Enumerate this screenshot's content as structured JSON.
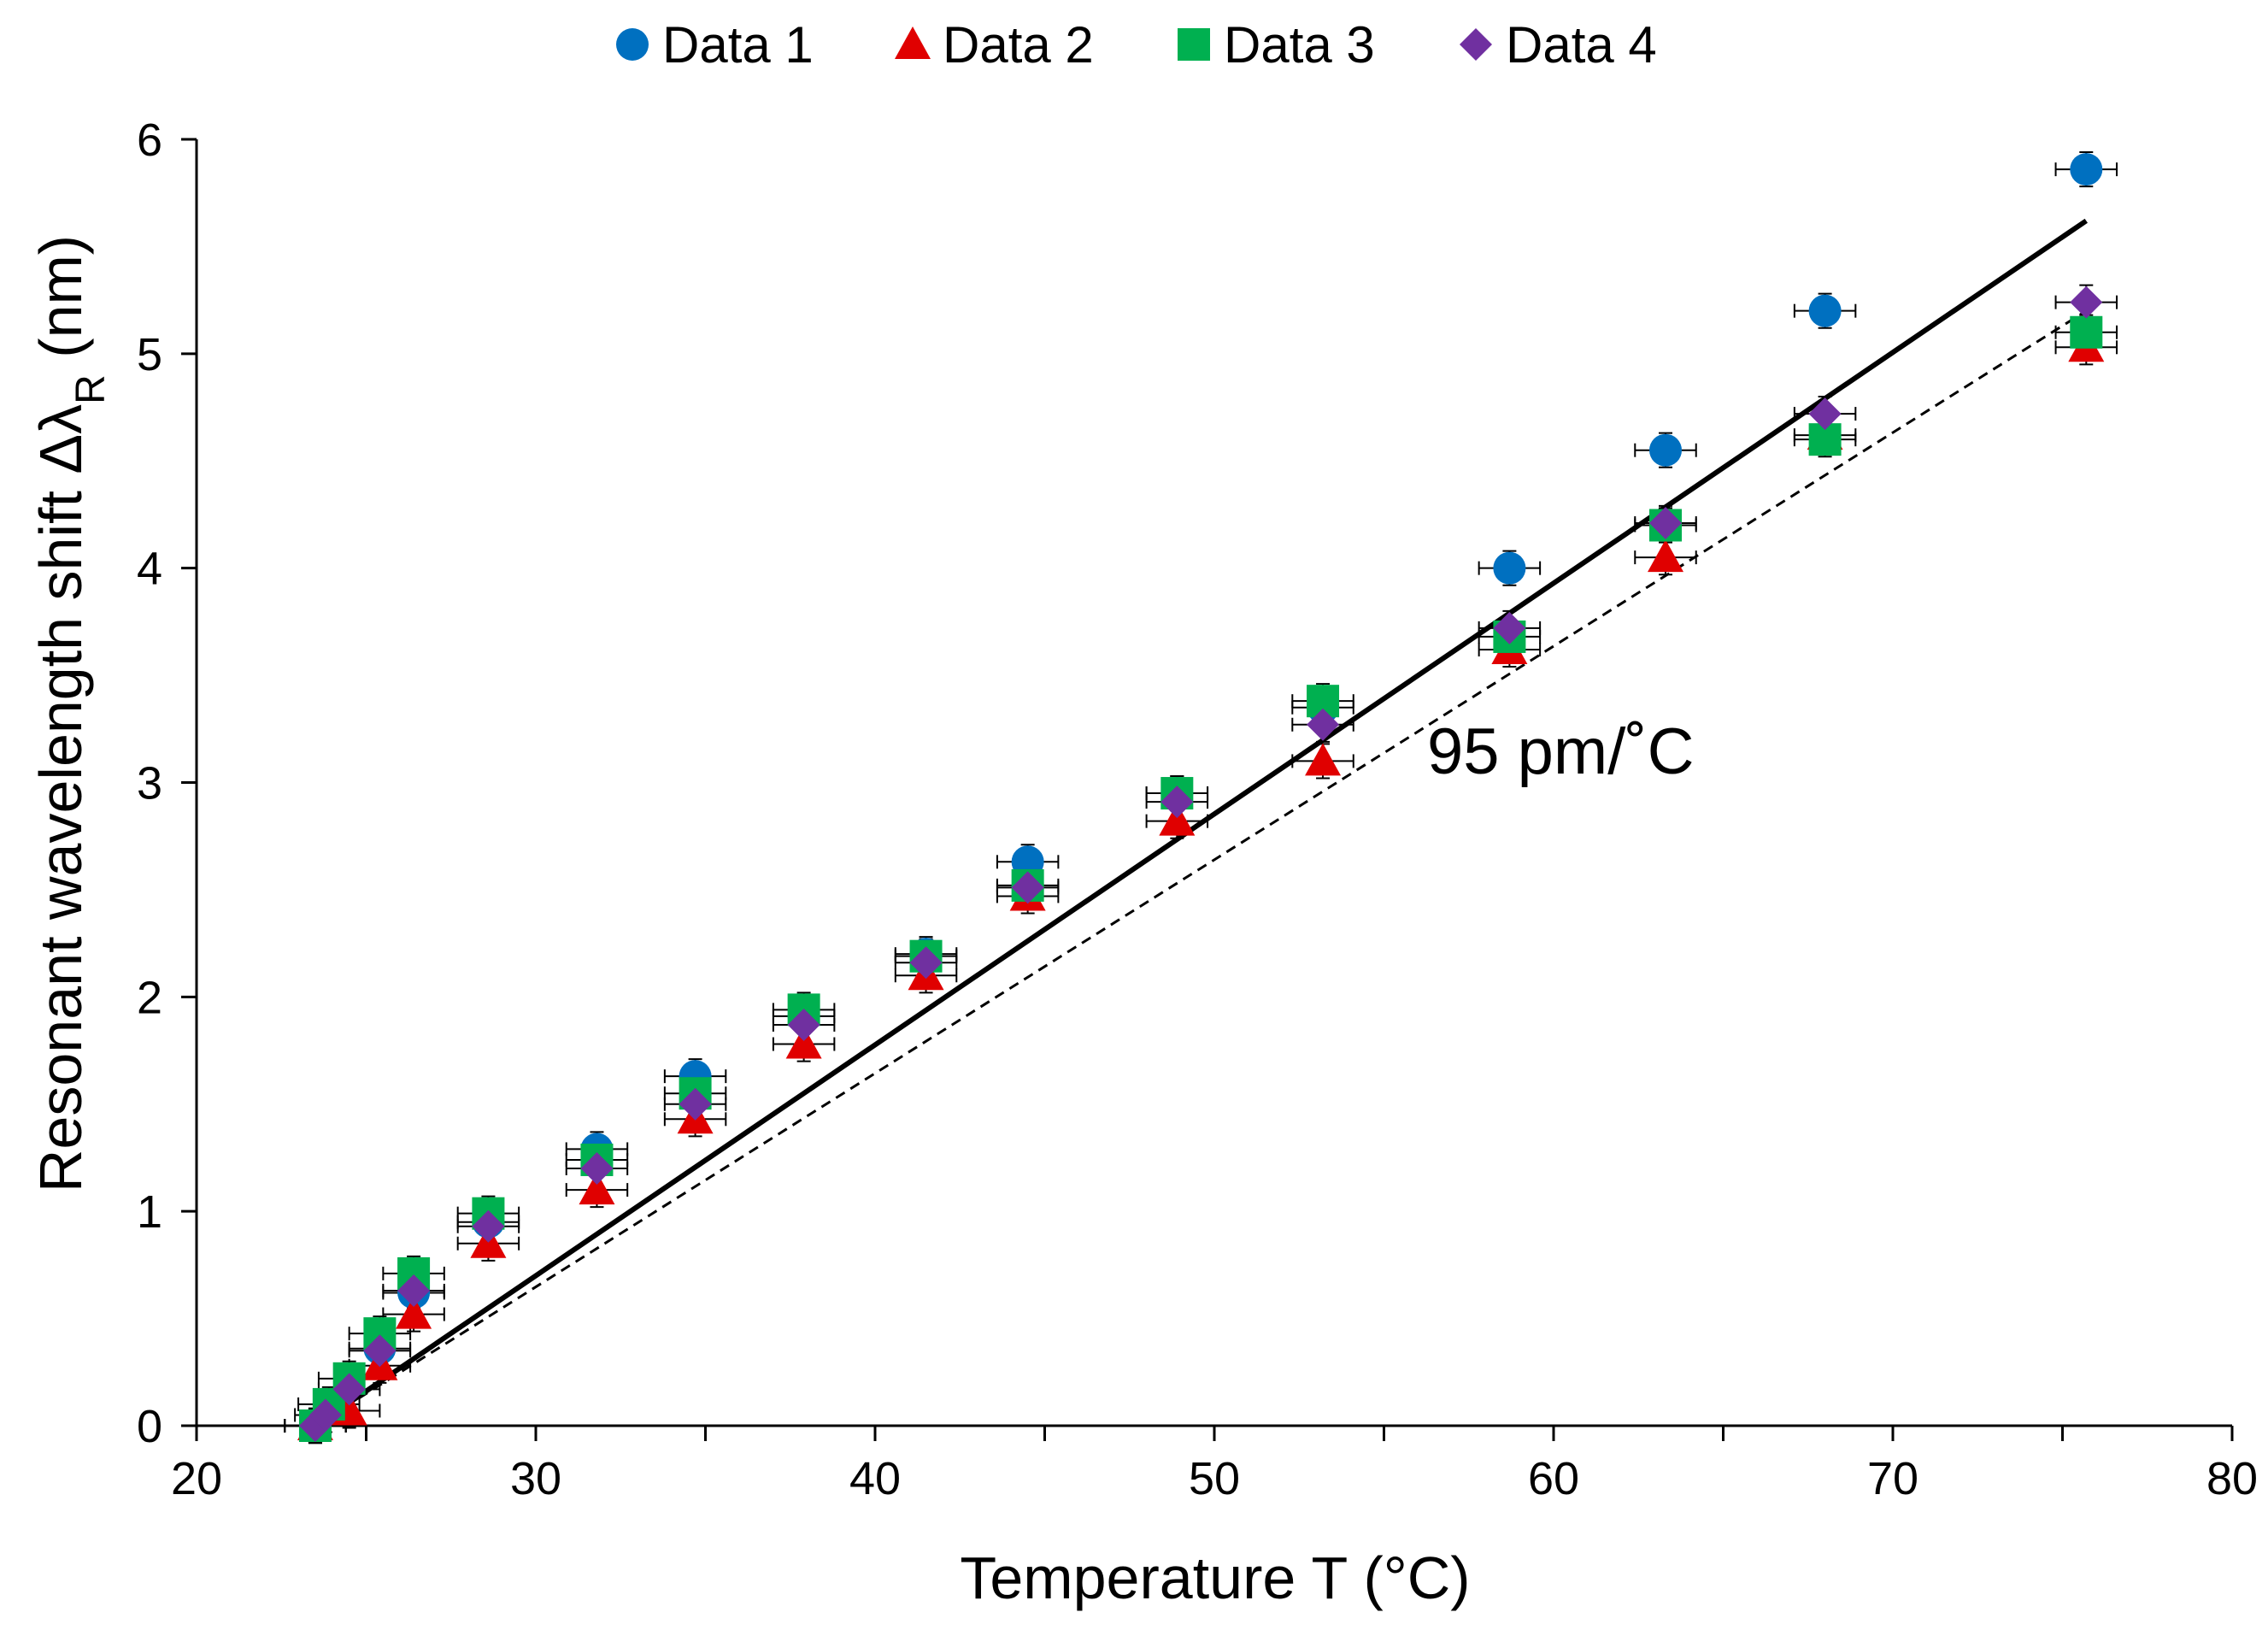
{
  "chart_data": {
    "type": "scatter",
    "title": "",
    "xlabel": "Temperature T (°C)",
    "ylabel_main": "Resonant wavelength shift Δλ",
    "ylabel_sub": "R",
    "ylabel_unit": " (nm)",
    "xlim": [
      20,
      80
    ],
    "ylim": [
      0,
      6
    ],
    "xticks": [
      20,
      30,
      40,
      50,
      60,
      70,
      80
    ],
    "yticks": [
      0,
      1,
      2,
      3,
      4,
      5,
      6
    ],
    "grid": false,
    "legend_position": "top",
    "annotation": "95 pm/˚C",
    "x_error": 0.9,
    "y_error": 0.08,
    "series": [
      {
        "name": "Data 1",
        "marker": "circle",
        "color": "#0070C0",
        "x": [
          23.5,
          25.4,
          26.4,
          28.6,
          31.8,
          34.7,
          37.9,
          41.5,
          44.5,
          48.9,
          53.2,
          58.7,
          63.3,
          68.0,
          75.7
        ],
        "y": [
          0.0,
          0.36,
          0.62,
          0.95,
          1.29,
          1.63,
          1.91,
          2.2,
          2.63,
          2.95,
          3.35,
          4.0,
          4.55,
          5.2,
          5.86
        ]
      },
      {
        "name": "Data 2",
        "marker": "triangle",
        "color": "#E00000",
        "x": [
          23.5,
          24.5,
          25.4,
          26.4,
          28.6,
          31.8,
          34.7,
          37.9,
          41.5,
          44.5,
          48.9,
          53.2,
          58.7,
          63.3,
          68.0,
          75.7
        ],
        "y": [
          0.0,
          0.07,
          0.28,
          0.52,
          0.85,
          1.1,
          1.43,
          1.78,
          2.1,
          2.47,
          2.82,
          3.1,
          3.62,
          4.05,
          4.62,
          5.03
        ]
      },
      {
        "name": "Data 3",
        "marker": "square",
        "color": "#00B050",
        "x": [
          23.5,
          23.9,
          24.5,
          25.4,
          26.4,
          28.6,
          31.8,
          34.7,
          37.9,
          41.5,
          44.5,
          48.9,
          53.2,
          58.7,
          63.3,
          68.0,
          75.7
        ],
        "y": [
          0.0,
          0.1,
          0.22,
          0.43,
          0.71,
          0.99,
          1.24,
          1.55,
          1.94,
          2.19,
          2.52,
          2.95,
          3.38,
          3.68,
          4.2,
          4.6,
          5.1
        ]
      },
      {
        "name": "Data 4",
        "marker": "diamond",
        "color": "#7030A0",
        "x": [
          23.5,
          23.8,
          24.5,
          25.4,
          26.4,
          28.6,
          31.8,
          34.7,
          37.9,
          41.5,
          44.5,
          48.9,
          53.2,
          58.7,
          63.3,
          68.0,
          75.7
        ],
        "y": [
          0.0,
          0.05,
          0.17,
          0.35,
          0.63,
          0.93,
          1.2,
          1.5,
          1.87,
          2.16,
          2.51,
          2.91,
          3.27,
          3.72,
          4.21,
          4.72,
          5.24
        ]
      }
    ],
    "fit_lines": [
      {
        "name": "fit-solid",
        "style": "solid",
        "x": [
          23.5,
          75.7
        ],
        "y": [
          0.0,
          5.62
        ]
      },
      {
        "name": "fit-dashed",
        "style": "dashed",
        "x": [
          23.5,
          75.7
        ],
        "y": [
          0.0,
          5.2
        ]
      }
    ]
  }
}
